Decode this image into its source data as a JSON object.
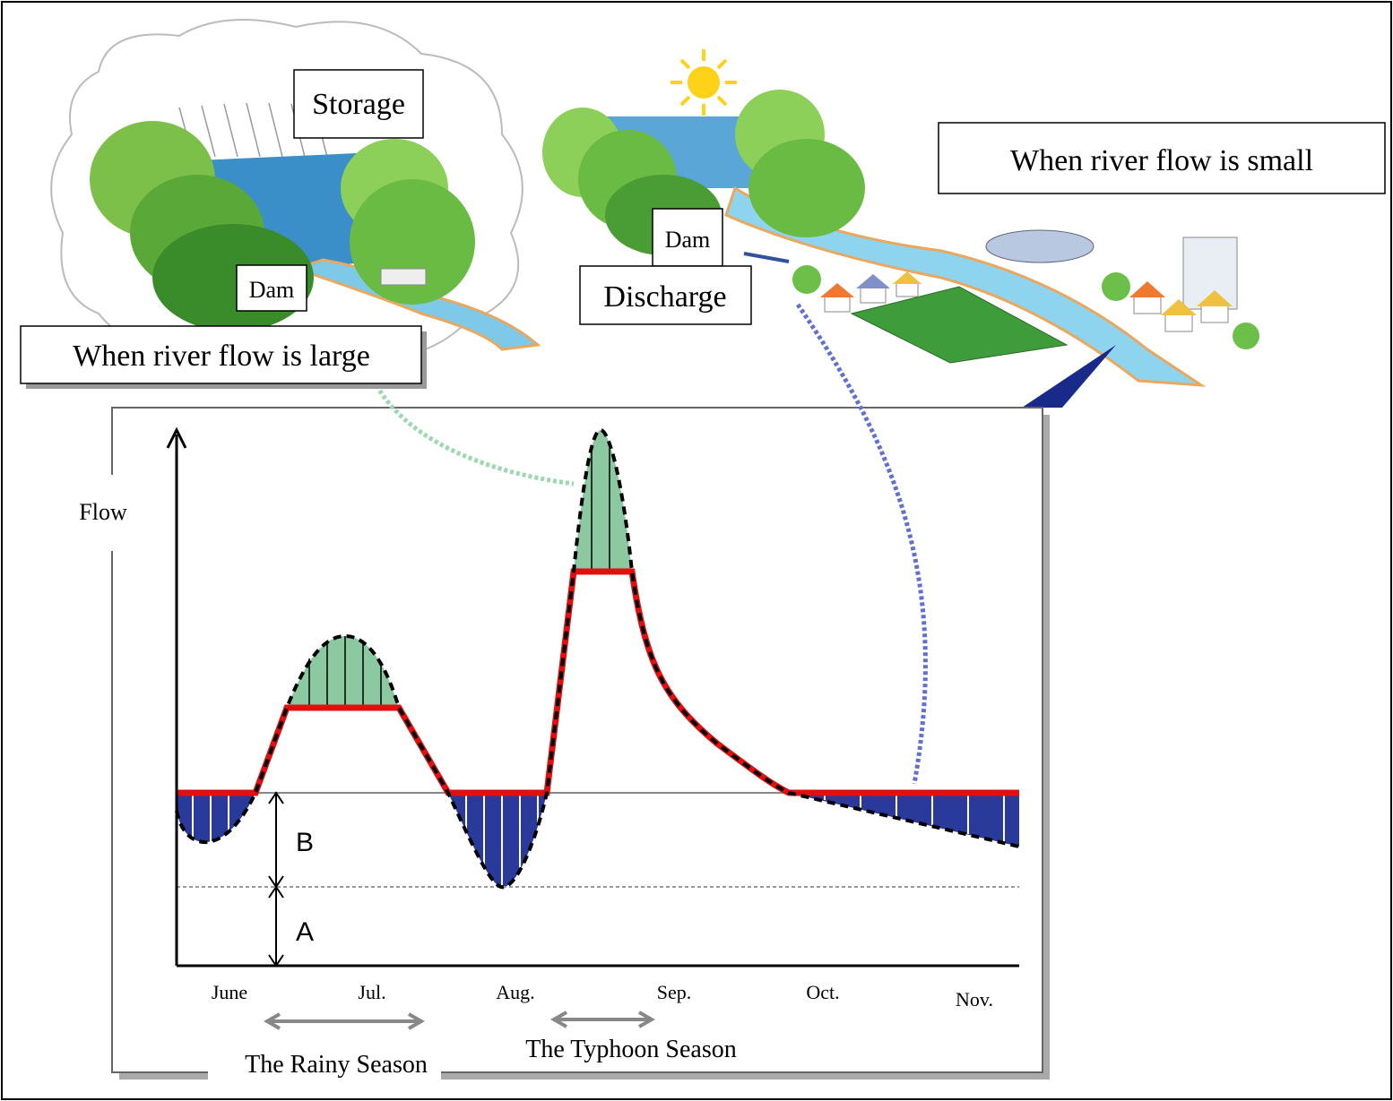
{
  "labels": {
    "storage": "Storage",
    "small_flow": "When river flow is small",
    "dam_right": "Dam",
    "discharge": "Discharge",
    "dam_left": "Dam",
    "large_flow": "When river flow is large"
  },
  "graph": {
    "y_axis": "Flow",
    "marker_b": "B",
    "marker_a": "A",
    "months": [
      "June",
      "Jul.",
      "Aug.",
      "Sep.",
      "Oct.",
      "Nov."
    ],
    "seasons": [
      "The Rainy Season",
      "The Typhoon Season"
    ]
  }
}
